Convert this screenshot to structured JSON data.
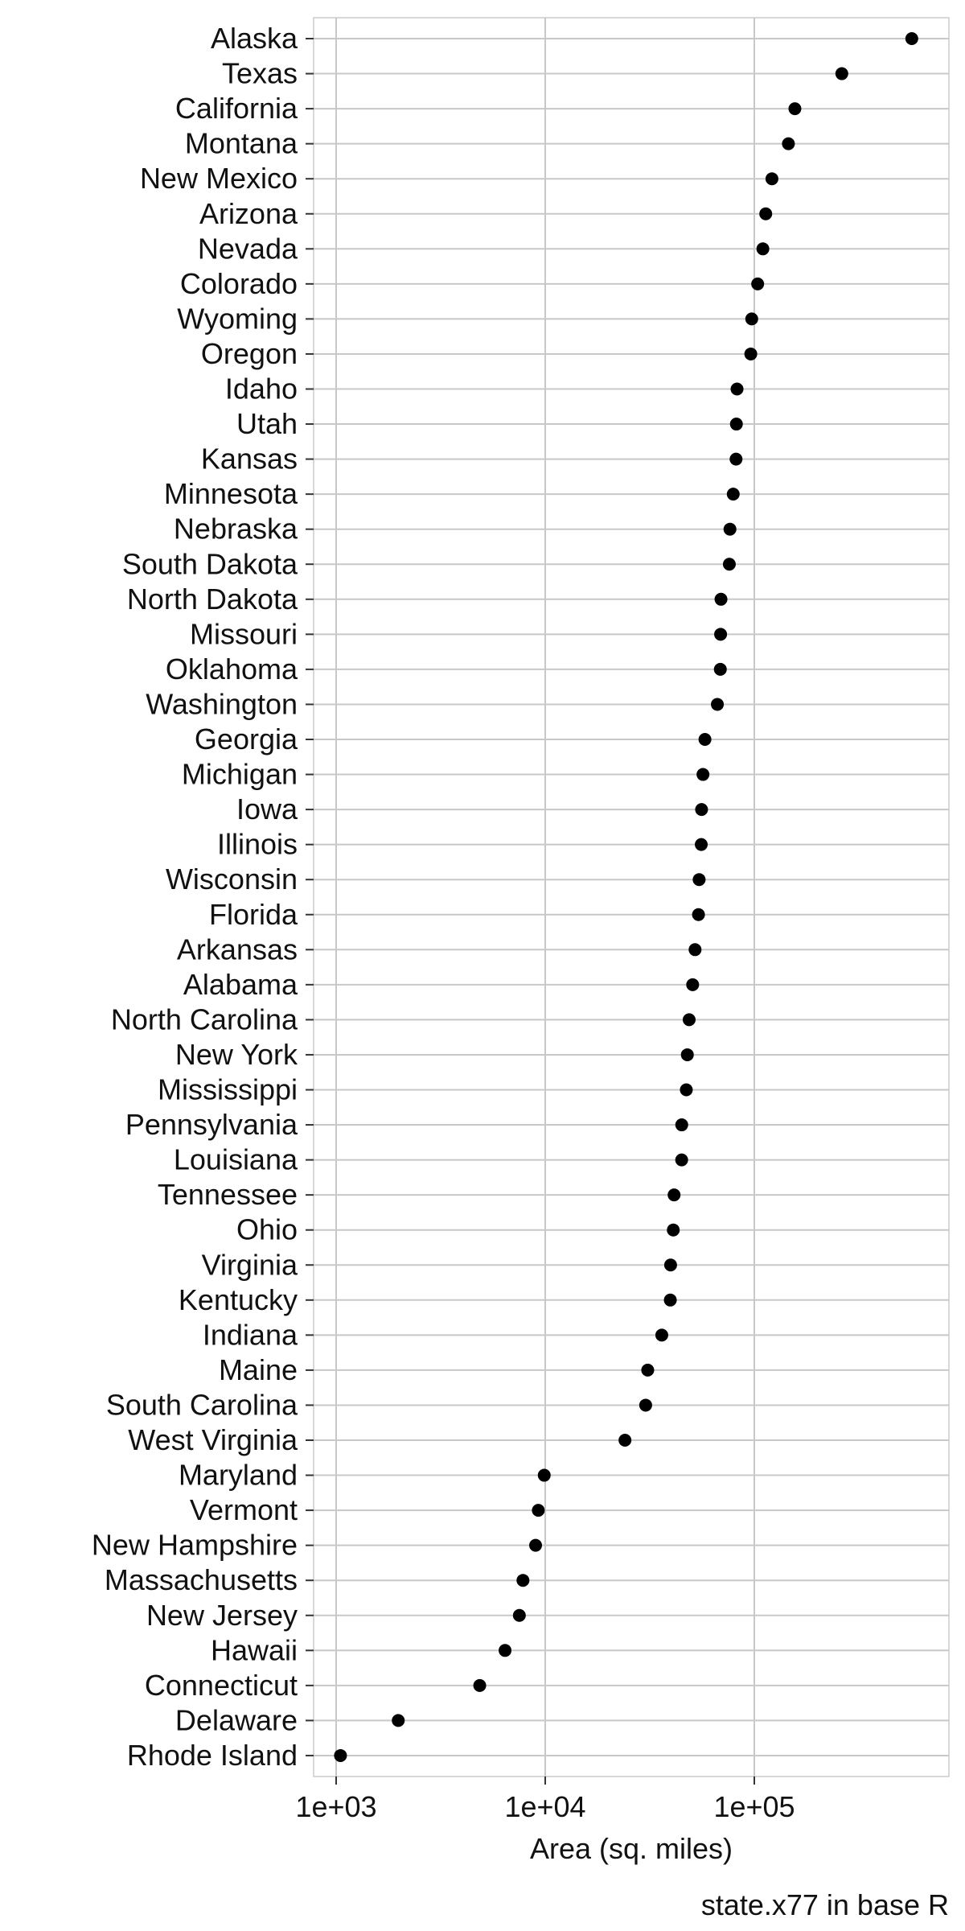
{
  "chart_data": {
    "type": "scatter",
    "xlabel": "Area (sq. miles)",
    "ylabel": "",
    "caption": "state.x77 in base R",
    "x_scale": "log10",
    "xlim": [
      1000,
      566432
    ],
    "x_ticks": [
      1000,
      10000,
      100000
    ],
    "x_tick_labels": [
      "1e+03",
      "1e+04",
      "1e+05"
    ],
    "grid": true,
    "point_color": "#000000",
    "grid_color": "#c8c8c8",
    "categories": [
      "Alaska",
      "Texas",
      "California",
      "Montana",
      "New Mexico",
      "Arizona",
      "Nevada",
      "Colorado",
      "Wyoming",
      "Oregon",
      "Idaho",
      "Utah",
      "Kansas",
      "Minnesota",
      "Nebraska",
      "South Dakota",
      "North Dakota",
      "Missouri",
      "Oklahoma",
      "Washington",
      "Georgia",
      "Michigan",
      "Iowa",
      "Illinois",
      "Wisconsin",
      "Florida",
      "Arkansas",
      "Alabama",
      "North Carolina",
      "New York",
      "Mississippi",
      "Pennsylvania",
      "Louisiana",
      "Tennessee",
      "Ohio",
      "Virginia",
      "Kentucky",
      "Indiana",
      "Maine",
      "South Carolina",
      "West Virginia",
      "Maryland",
      "Vermont",
      "New Hampshire",
      "Massachusetts",
      "New Jersey",
      "Hawaii",
      "Connecticut",
      "Delaware",
      "Rhode Island"
    ],
    "values": [
      566432,
      262134,
      156361,
      145587,
      121412,
      113417,
      109889,
      103766,
      97203,
      96184,
      82677,
      82096,
      81787,
      79289,
      76483,
      75955,
      69273,
      68995,
      68782,
      66570,
      58073,
      56817,
      55941,
      55748,
      54464,
      54090,
      52078,
      50708,
      48798,
      47831,
      47296,
      44966,
      44930,
      41328,
      40975,
      39780,
      39650,
      36097,
      30920,
      30225,
      24070,
      9891,
      9267,
      8993,
      7826,
      7521,
      6425,
      4862,
      1982,
      1049
    ]
  }
}
